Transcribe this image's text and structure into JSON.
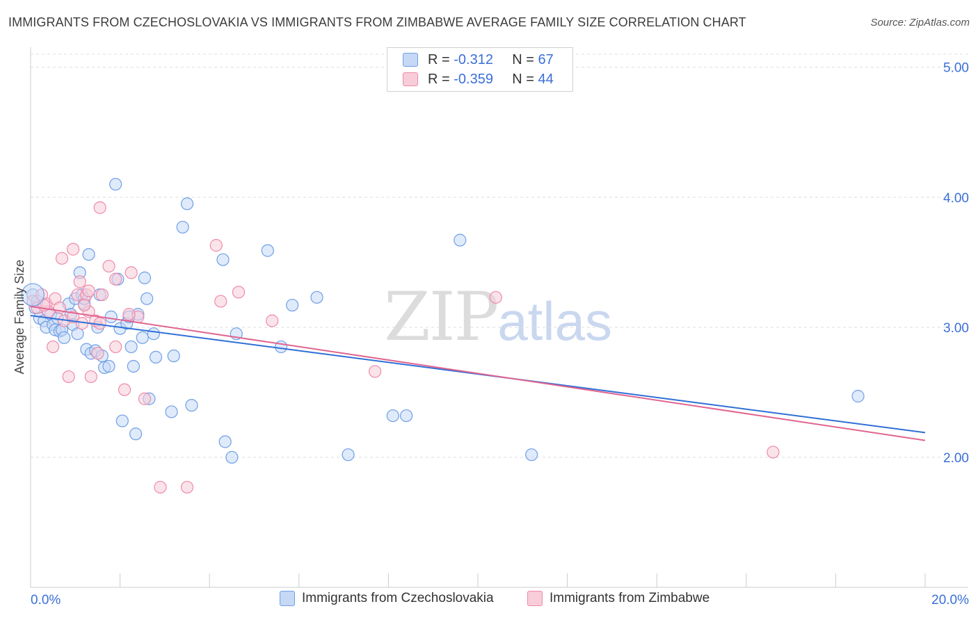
{
  "title": "IMMIGRANTS FROM CZECHOSLOVAKIA VS IMMIGRANTS FROM ZIMBABWE AVERAGE FAMILY SIZE CORRELATION CHART",
  "source": "Source: ZipAtlas.com",
  "watermark": {
    "zip": "ZIP",
    "atlas": "atlas"
  },
  "legend": {
    "rows": [
      {
        "r_label": "R =",
        "r_value": "-0.312",
        "n_label": "N =",
        "n_value": "67"
      },
      {
        "r_label": "R =",
        "r_value": "-0.359",
        "n_label": "N =",
        "n_value": "44"
      }
    ]
  },
  "chart_data": {
    "type": "scatter",
    "title": "IMMIGRANTS FROM CZECHOSLOVAKIA VS IMMIGRANTS FROM ZIMBABWE AVERAGE FAMILY SIZE CORRELATION CHART",
    "xlabel": "",
    "ylabel": "Average Family Size",
    "xlim": [
      0,
      20
    ],
    "ylim": [
      1.0,
      5.1
    ],
    "x_tick_labels": [
      "0.0%",
      "20.0%"
    ],
    "y_ticks": [
      2.0,
      3.0,
      4.0,
      5.0
    ],
    "y_tick_labels": [
      "2.00",
      "3.00",
      "4.00",
      "5.00"
    ],
    "grid": true,
    "legend_position": "top-center",
    "series": [
      {
        "name": "Immigrants from Czechoslovakia",
        "color": "#6f9fe6",
        "fill": "#c5d8f5",
        "trend_color": "#2e6fd6",
        "trend": {
          "x": [
            0,
            20
          ],
          "y": [
            3.09,
            2.19
          ]
        },
        "points": [
          [
            0.05,
            3.25
          ],
          [
            0.1,
            3.15
          ],
          [
            0.2,
            3.07
          ],
          [
            0.3,
            3.05
          ],
          [
            0.35,
            3.0
          ],
          [
            0.45,
            3.1
          ],
          [
            0.5,
            3.02
          ],
          [
            0.55,
            2.98
          ],
          [
            0.6,
            3.07
          ],
          [
            0.65,
            2.97
          ],
          [
            0.7,
            2.98
          ],
          [
            0.75,
            2.92
          ],
          [
            0.85,
            3.18
          ],
          [
            0.9,
            3.1
          ],
          [
            0.95,
            3.02
          ],
          [
            1.0,
            3.22
          ],
          [
            1.05,
            2.95
          ],
          [
            1.15,
            3.25
          ],
          [
            1.1,
            3.42
          ],
          [
            1.2,
            3.18
          ],
          [
            1.2,
            3.22
          ],
          [
            1.25,
            2.83
          ],
          [
            1.35,
            2.8
          ],
          [
            1.3,
            3.56
          ],
          [
            1.45,
            2.82
          ],
          [
            1.5,
            3.0
          ],
          [
            1.55,
            3.25
          ],
          [
            1.6,
            2.78
          ],
          [
            1.65,
            2.69
          ],
          [
            1.75,
            2.7
          ],
          [
            1.8,
            3.08
          ],
          [
            1.9,
            4.1
          ],
          [
            1.95,
            3.37
          ],
          [
            2.0,
            2.99
          ],
          [
            2.05,
            2.28
          ],
          [
            2.15,
            3.03
          ],
          [
            2.2,
            3.08
          ],
          [
            2.25,
            2.85
          ],
          [
            2.3,
            2.7
          ],
          [
            2.35,
            2.18
          ],
          [
            2.4,
            3.1
          ],
          [
            2.5,
            2.92
          ],
          [
            2.55,
            3.38
          ],
          [
            2.6,
            3.22
          ],
          [
            2.65,
            2.45
          ],
          [
            2.75,
            2.95
          ],
          [
            2.8,
            2.77
          ],
          [
            3.15,
            2.35
          ],
          [
            3.2,
            2.78
          ],
          [
            3.4,
            3.77
          ],
          [
            3.5,
            3.95
          ],
          [
            3.6,
            2.4
          ],
          [
            4.3,
            3.52
          ],
          [
            4.35,
            2.12
          ],
          [
            4.5,
            2.0
          ],
          [
            4.6,
            2.95
          ],
          [
            5.3,
            3.59
          ],
          [
            5.6,
            2.85
          ],
          [
            5.85,
            3.17
          ],
          [
            6.4,
            3.23
          ],
          [
            7.1,
            2.02
          ],
          [
            8.1,
            2.32
          ],
          [
            8.4,
            2.32
          ],
          [
            9.6,
            3.67
          ],
          [
            11.2,
            2.02
          ],
          [
            18.5,
            2.47
          ],
          [
            0.15,
            3.2
          ]
        ]
      },
      {
        "name": "Immigrants from Zimbabwe",
        "color": "#ee8aaa",
        "fill": "#f8ccd9",
        "trend_color": "#e0648f",
        "trend": {
          "x": [
            0,
            20
          ],
          "y": [
            3.16,
            2.13
          ]
        },
        "points": [
          [
            0.05,
            3.2
          ],
          [
            0.15,
            3.15
          ],
          [
            0.25,
            3.25
          ],
          [
            0.35,
            3.18
          ],
          [
            0.4,
            3.12
          ],
          [
            0.5,
            2.85
          ],
          [
            0.55,
            3.22
          ],
          [
            0.65,
            3.15
          ],
          [
            0.75,
            3.05
          ],
          [
            0.7,
            3.53
          ],
          [
            0.85,
            2.62
          ],
          [
            0.95,
            3.08
          ],
          [
            0.95,
            3.6
          ],
          [
            1.05,
            3.25
          ],
          [
            1.1,
            3.35
          ],
          [
            1.15,
            3.03
          ],
          [
            1.25,
            3.25
          ],
          [
            1.3,
            3.12
          ],
          [
            1.3,
            3.28
          ],
          [
            1.35,
            2.62
          ],
          [
            1.45,
            3.05
          ],
          [
            1.5,
            2.8
          ],
          [
            1.55,
            3.03
          ],
          [
            1.6,
            3.25
          ],
          [
            1.55,
            3.92
          ],
          [
            1.75,
            3.47
          ],
          [
            1.9,
            3.37
          ],
          [
            1.9,
            2.85
          ],
          [
            2.1,
            2.52
          ],
          [
            2.25,
            3.42
          ],
          [
            2.4,
            3.08
          ],
          [
            2.55,
            2.45
          ],
          [
            2.9,
            1.77
          ],
          [
            3.5,
            1.77
          ],
          [
            4.15,
            3.63
          ],
          [
            4.25,
            3.2
          ],
          [
            4.65,
            3.27
          ],
          [
            5.4,
            3.05
          ],
          [
            7.7,
            2.66
          ],
          [
            10.4,
            3.23
          ],
          [
            16.6,
            2.04
          ],
          [
            0.3,
            3.17
          ],
          [
            1.2,
            3.17
          ],
          [
            2.2,
            3.1
          ]
        ]
      }
    ]
  }
}
